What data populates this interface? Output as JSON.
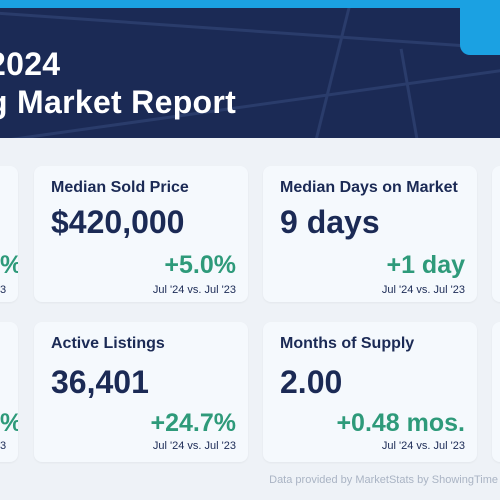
{
  "header": {
    "year_partial": "2024",
    "title_partial": "g Market Report"
  },
  "cards": [
    {
      "label": "Median Sold Price",
      "value": "$420,000",
      "change": "+5.0%",
      "period": "Jul '24 vs. Jul '23"
    },
    {
      "label": "Median Days on Market",
      "value": "9 days",
      "change": "+1 day",
      "period": "Jul '24 vs. Jul '23"
    },
    {
      "label": "Active Listings",
      "value": "36,401",
      "change": "+24.7%",
      "period": "Jul '24 vs. Jul '23"
    },
    {
      "label": "Months of Supply",
      "value": "2.00",
      "change": "+0.48 mos.",
      "period": "Jul '24 vs. Jul '23"
    }
  ],
  "left_edge_cards": [
    {
      "change_partial": "%",
      "period_partial": "3"
    },
    {
      "change_partial": "%",
      "period_partial": "3"
    }
  ],
  "footer": {
    "text": "Data provided by MarketStats by ShowingTime"
  },
  "colors": {
    "header_bg": "#1b2a55",
    "accent": "#1ba1e2",
    "positive_change": "#2e9a7a",
    "card_bg": "#f5f9fd",
    "page_bg": "#eef2f7"
  }
}
